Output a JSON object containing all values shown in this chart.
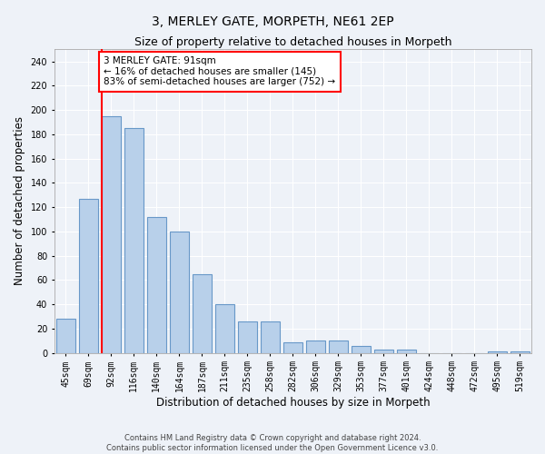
{
  "title": "3, MERLEY GATE, MORPETH, NE61 2EP",
  "subtitle": "Size of property relative to detached houses in Morpeth",
  "xlabel": "Distribution of detached houses by size in Morpeth",
  "ylabel": "Number of detached properties",
  "categories": [
    "45sqm",
    "69sqm",
    "92sqm",
    "116sqm",
    "140sqm",
    "164sqm",
    "187sqm",
    "211sqm",
    "235sqm",
    "258sqm",
    "282sqm",
    "306sqm",
    "329sqm",
    "353sqm",
    "377sqm",
    "401sqm",
    "424sqm",
    "448sqm",
    "472sqm",
    "495sqm",
    "519sqm"
  ],
  "values": [
    28,
    127,
    195,
    185,
    112,
    100,
    65,
    40,
    26,
    26,
    9,
    10,
    10,
    6,
    3,
    3,
    0,
    0,
    0,
    1,
    1
  ],
  "bar_color": "#b8d0ea",
  "bar_edge_color": "#6898c8",
  "red_line_index": 2,
  "annotation_text": "3 MERLEY GATE: 91sqm\n← 16% of detached houses are smaller (145)\n83% of semi-detached houses are larger (752) →",
  "annotation_box_color": "white",
  "annotation_box_edge_color": "red",
  "ylim": [
    0,
    250
  ],
  "yticks": [
    0,
    20,
    40,
    60,
    80,
    100,
    120,
    140,
    160,
    180,
    200,
    220,
    240
  ],
  "footer_line1": "Contains HM Land Registry data © Crown copyright and database right 2024.",
  "footer_line2": "Contains public sector information licensed under the Open Government Licence v3.0.",
  "background_color": "#eef2f8",
  "grid_color": "#ffffff",
  "title_fontsize": 10,
  "subtitle_fontsize": 9,
  "tick_fontsize": 7,
  "label_fontsize": 8.5,
  "annotation_fontsize": 7.5
}
